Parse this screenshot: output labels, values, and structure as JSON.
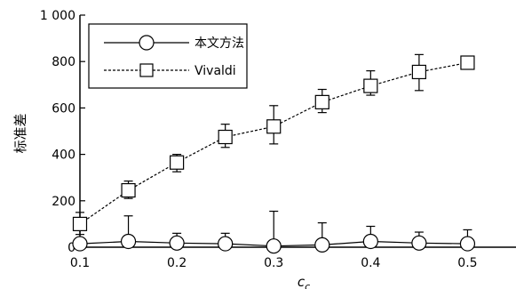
{
  "chart_data": {
    "type": "line",
    "xlabel": "c",
    "xlabel_sub": "c",
    "ylabel": "标准差",
    "xlim": [
      0.1,
      0.55
    ],
    "ylim": [
      0,
      1000
    ],
    "xticks": [
      0.1,
      0.2,
      0.3,
      0.4,
      0.5
    ],
    "xtick_labels": [
      "0.1",
      "0.2",
      "0.3",
      "0.4",
      "0.5"
    ],
    "yticks": [
      0,
      200,
      400,
      600,
      800,
      1000
    ],
    "ytick_labels": [
      "0",
      "200",
      "400",
      "600",
      "800",
      "1 000"
    ],
    "grid": false,
    "legend_position": "top-left",
    "x": [
      0.1,
      0.15,
      0.2,
      0.25,
      0.3,
      0.35,
      0.4,
      0.45,
      0.5
    ],
    "series": [
      {
        "name": "本文方法",
        "marker": "circle",
        "line_style": "solid",
        "values": [
          15,
          25,
          18,
          15,
          5,
          10,
          25,
          18,
          15
        ],
        "err_low": [
          5,
          10,
          15,
          15,
          5,
          10,
          10,
          12,
          15
        ],
        "err_high": [
          20,
          135,
          60,
          60,
          155,
          105,
          90,
          65,
          75
        ]
      },
      {
        "name": "Vivaldi",
        "marker": "square",
        "line_style": "dashed",
        "values": [
          100,
          245,
          365,
          475,
          520,
          625,
          695,
          755,
          795
        ],
        "err_low": [
          55,
          210,
          325,
          430,
          445,
          580,
          655,
          675,
          780
        ],
        "err_high": [
          150,
          285,
          400,
          530,
          610,
          680,
          760,
          830,
          805
        ]
      }
    ]
  }
}
